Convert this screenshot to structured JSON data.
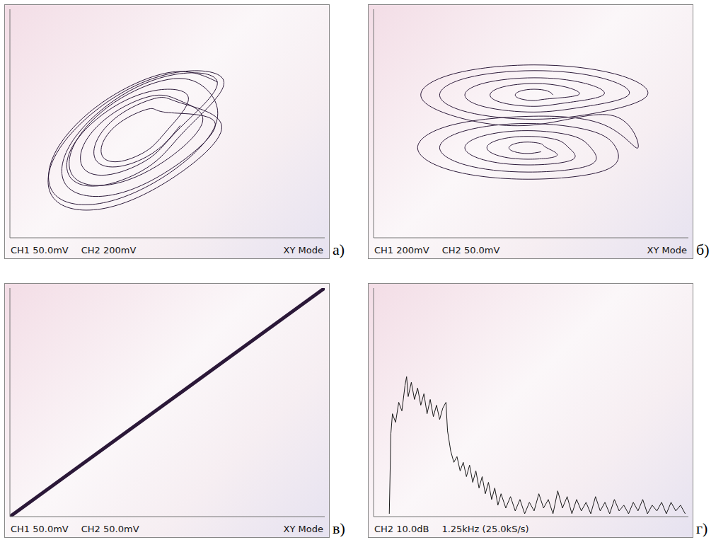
{
  "chart_data": [
    {
      "type": "line",
      "label": "а)",
      "annotations": [
        "CH1 50.0mV",
        "CH2 200mV",
        "XY Mode"
      ],
      "grid": true,
      "tick_labels": false,
      "line_style": "smooth",
      "color": "#2b1838",
      "xlim": [
        -5,
        5
      ],
      "ylim": [
        -4,
        4
      ],
      "xticks": [
        -5,
        -4,
        -3,
        -2,
        -1,
        0,
        1,
        2,
        3,
        4,
        5
      ],
      "yticks": [
        -4,
        -3,
        -2,
        -1,
        0,
        1,
        2,
        3,
        4
      ],
      "x": [
        1.6,
        0.15,
        -1.98,
        -3.53,
        -3.6,
        -2.15,
        -0.02,
        1.53,
        1.18,
        0.02,
        -1.68,
        -2.92,
        -2.98,
        -1.82,
        -0.12,
        1.12,
        0.46,
        -0.41,
        -1.69,
        -2.62,
        -2.66,
        -1.79,
        -0.52,
        0.42,
        1.59,
        0.26,
        -1.7,
        -3.12,
        -3.19,
        -1.86,
        0.1,
        1.52,
        0.04,
        -0.54,
        -1.39,
        -2.01,
        -2.04,
        -1.46,
        -0.61,
        0.01,
        0.67,
        -0.37,
        -1.9,
        -3.02,
        -3.07,
        -2.03,
        -0.5,
        0.62,
        1.8,
        0.3,
        -1.91,
        -3.53,
        -3.6,
        -2.1,
        0.11,
        1.73,
        0.45,
        -0.3,
        -1.41,
        -2.21,
        -2.25,
        -1.5,
        -0.39,
        0.41
      ],
      "values": [
        1.45,
        1.8,
        0.8,
        -0.95,
        -2.45,
        -2.8,
        -1.8,
        -0.05,
        1.26,
        1.54,
        0.74,
        -0.66,
        -1.86,
        -2.14,
        -1.34,
        0.06,
        0.77,
        0.98,
        0.38,
        -0.67,
        -1.57,
        -1.78,
        -1.18,
        -0.13,
        1.39,
        1.72,
        0.8,
        -0.81,
        -2.19,
        -2.52,
        -1.6,
        0.01,
        0.38,
        0.52,
        0.12,
        -0.58,
        -1.18,
        -1.32,
        -0.92,
        -0.22,
        0.9,
        1.16,
        0.44,
        -0.82,
        -1.9,
        -2.16,
        -1.44,
        -0.18,
        1.43,
        1.79,
        0.75,
        -1.07,
        -2.63,
        -2.99,
        -1.95,
        -0.13,
        0.71,
        0.9,
        0.38,
        -0.53,
        -1.31,
        -1.5,
        -0.98,
        -0.07
      ]
    },
    {
      "type": "line",
      "label": "б)",
      "annotations": [
        "CH1 200mV",
        "CH2 50.0mV",
        "XY Mode"
      ],
      "grid": true,
      "tick_labels": false,
      "line_style": "smooth",
      "color": "#2b1838",
      "xlim": [
        -5,
        5
      ],
      "ylim": [
        -4,
        4
      ],
      "xticks": [
        -5,
        -4,
        -3,
        -2,
        -1,
        0,
        1,
        2,
        3,
        4,
        5
      ],
      "yticks": [
        -4,
        -3,
        -2,
        -1,
        0,
        1,
        2,
        3,
        4
      ],
      "x": [
        0.7,
        0.52,
        0.1,
        -0.32,
        -0.5,
        -0.32,
        0.1,
        0.52,
        1.5,
        1.09,
        0.1,
        -0.89,
        -1.3,
        -0.89,
        0.1,
        1.09,
        2.3,
        1.66,
        0.1,
        -1.46,
        -2.1,
        -1.46,
        0.1,
        1.66,
        3.1,
        2.22,
        0.1,
        -2.02,
        -2.9,
        -2.02,
        0.1,
        2.22,
        3.7,
        2.65,
        0.1,
        -2.45,
        -3.5,
        -2.45,
        0.1,
        2.65,
        3.4,
        2.37,
        -0.1,
        -2.57,
        -3.6,
        -2.57,
        -0.1,
        2.37,
        2.7,
        1.88,
        -0.1,
        -2.08,
        -2.9,
        -2.08,
        -0.1,
        1.88,
        1.9,
        1.31,
        -0.1,
        -1.51,
        -2.1,
        -1.51,
        -0.1,
        1.31,
        1.2,
        0.82,
        -0.1,
        -1.02,
        -1.4,
        -1.02,
        -0.1,
        0.82,
        0.5,
        0.32,
        -0.1,
        -0.52,
        -0.7,
        -0.52,
        -0.1,
        0.32
      ],
      "values": [
        1.0,
        1.14,
        1.2,
        1.14,
        1.0,
        0.86,
        0.8,
        0.86,
        1.0,
        1.28,
        1.4,
        1.28,
        1.0,
        0.72,
        0.6,
        0.72,
        1.0,
        1.42,
        1.6,
        1.42,
        1.0,
        0.58,
        0.4,
        0.58,
        1.0,
        1.6,
        1.85,
        1.6,
        1.0,
        0.4,
        0.15,
        0.4,
        1.0,
        1.74,
        2.05,
        1.74,
        1.0,
        0.26,
        -0.05,
        0.26,
        -0.85,
        -0.07,
        0.25,
        -0.07,
        -0.85,
        -1.63,
        -1.95,
        -1.63,
        -0.85,
        -0.25,
        0.0,
        -0.25,
        -0.85,
        -1.45,
        -1.7,
        -1.45,
        -0.85,
        -0.43,
        -0.25,
        -0.43,
        -0.85,
        -1.27,
        -1.45,
        -1.27,
        -0.85,
        -0.57,
        -0.45,
        -0.57,
        -0.85,
        -1.13,
        -1.25,
        -1.13,
        -0.85,
        -0.71,
        -0.65,
        -0.71,
        -0.85,
        -0.99,
        -1.05,
        -0.99
      ]
    },
    {
      "type": "line",
      "label": "в)",
      "annotations": [
        "CH1 50.0mV",
        "CH2 50.0mV",
        "XY Mode"
      ],
      "grid": true,
      "tick_labels": false,
      "line_style": "solid",
      "color": "#2b1838",
      "xlim": [
        -5,
        5
      ],
      "ylim": [
        -4,
        4
      ],
      "xticks": [
        -5,
        -4,
        -3,
        -2,
        -1,
        0,
        1,
        2,
        3,
        4,
        5
      ],
      "yticks": [
        -4,
        -3,
        -2,
        -1,
        0,
        1,
        2,
        3,
        4
      ],
      "x": [
        -5,
        -2.5,
        0,
        2.5,
        5
      ],
      "values": [
        -4,
        -2,
        0,
        2,
        4
      ]
    },
    {
      "type": "line",
      "label": "г)",
      "annotations": [
        "CH2 10.0dB",
        "1.25kHz (25.0kS/s)"
      ],
      "grid": true,
      "tick_labels": false,
      "line_style": "solid",
      "color": "#1a1a1a",
      "xlim": [
        0,
        10
      ],
      "ylim": [
        0,
        8
      ],
      "xticks": [
        0,
        1,
        2,
        3,
        4,
        5,
        6,
        7,
        8,
        9,
        10
      ],
      "yticks": [
        0,
        1,
        2,
        3,
        4,
        5,
        6,
        7,
        8
      ],
      "x": [
        0.5,
        0.55,
        0.6,
        0.7,
        0.8,
        0.9,
        1.0,
        1.05,
        1.1,
        1.2,
        1.3,
        1.4,
        1.5,
        1.6,
        1.7,
        1.8,
        1.9,
        2.0,
        2.1,
        2.2,
        2.3,
        2.35,
        2.45,
        2.55,
        2.65,
        2.75,
        2.85,
        2.95,
        3.05,
        3.15,
        3.25,
        3.35,
        3.45,
        3.55,
        3.65,
        3.75,
        3.85,
        3.95,
        4.05,
        4.2,
        4.35,
        4.5,
        4.65,
        4.8,
        4.95,
        5.1,
        5.25,
        5.4,
        5.55,
        5.7,
        5.85,
        6.0,
        6.15,
        6.3,
        6.45,
        6.6,
        6.75,
        6.9,
        7.05,
        7.2,
        7.35,
        7.5,
        7.65,
        7.8,
        7.95,
        8.1,
        8.25,
        8.4,
        8.55,
        8.7,
        8.85,
        9.0,
        9.15,
        9.3,
        9.45,
        9.6,
        9.75,
        9.9
      ],
      "values": [
        0.1,
        2.9,
        3.6,
        3.3,
        4.0,
        3.7,
        4.6,
        4.9,
        4.2,
        4.7,
        4.1,
        4.5,
        3.9,
        4.3,
        3.6,
        4.1,
        3.5,
        3.9,
        3.4,
        3.8,
        4.0,
        3.0,
        2.3,
        1.9,
        2.1,
        1.6,
        1.9,
        1.4,
        1.8,
        1.2,
        1.6,
        1.0,
        1.4,
        0.8,
        1.2,
        0.6,
        1.0,
        0.4,
        0.8,
        0.3,
        0.7,
        0.2,
        0.6,
        0.1,
        0.5,
        0.2,
        0.8,
        0.3,
        0.6,
        0.1,
        0.9,
        0.3,
        0.7,
        0.1,
        0.6,
        0.2,
        0.5,
        0.1,
        0.7,
        0.2,
        0.5,
        0.1,
        0.6,
        0.2,
        0.4,
        0.1,
        0.5,
        0.2,
        0.6,
        0.1,
        0.4,
        0.2,
        0.5,
        0.1,
        0.5,
        0.2,
        0.4,
        0.1
      ]
    }
  ]
}
